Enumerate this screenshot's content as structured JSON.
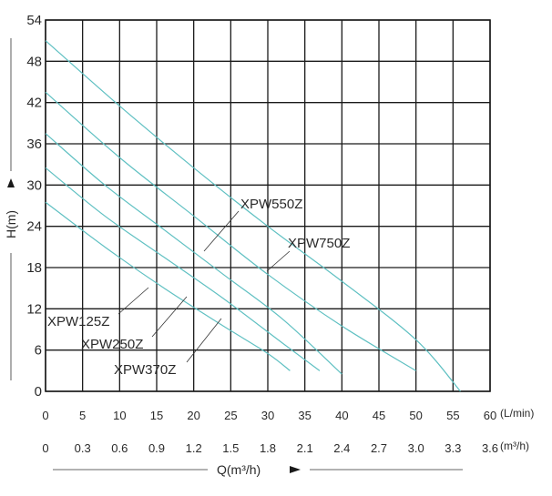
{
  "chart_data": {
    "type": "line",
    "title": "",
    "ylabel": "H(m)",
    "xlabel": "Q(m³/h)",
    "x_unit_top": "(L/min)",
    "x_unit_bottom": "(m³/h)",
    "xlim": [
      0,
      60
    ],
    "ylim": [
      0,
      54
    ],
    "x_ticks_lmin": [
      "0",
      "5",
      "10",
      "15",
      "20",
      "25",
      "30",
      "35",
      "40",
      "45",
      "50",
      "55",
      "60"
    ],
    "x_ticks_m3h": [
      "0",
      "0.3",
      "0.6",
      "0.9",
      "1.2",
      "1.5",
      "1.8",
      "2.1",
      "2.4",
      "2.7",
      "3.0",
      "3.3",
      "3.6"
    ],
    "y_ticks": [
      "0",
      "6",
      "12",
      "18",
      "24",
      "30",
      "36",
      "42",
      "48",
      "54"
    ],
    "grid": true,
    "line_color": "#5fc0c2",
    "series": [
      {
        "name": "XPW125Z",
        "points": [
          [
            0,
            27.5
          ],
          [
            8,
            21
          ],
          [
            16,
            15
          ],
          [
            24,
            9.5
          ],
          [
            30,
            5.5
          ],
          [
            33,
            3
          ]
        ]
      },
      {
        "name": "XPW250Z",
        "points": [
          [
            0,
            32.5
          ],
          [
            8,
            25.5
          ],
          [
            16,
            19.5
          ],
          [
            24,
            13.5
          ],
          [
            32,
            7
          ],
          [
            37,
            3
          ]
        ]
      },
      {
        "name": "XPW370Z",
        "points": [
          [
            0,
            37.5
          ],
          [
            8,
            30
          ],
          [
            16,
            23.5
          ],
          [
            24,
            17
          ],
          [
            32,
            10.5
          ],
          [
            40,
            2.5
          ]
        ]
      },
      {
        "name": "XPW550Z",
        "points": [
          [
            0,
            43.5
          ],
          [
            10,
            34
          ],
          [
            20,
            25.5
          ],
          [
            30,
            17
          ],
          [
            40,
            9.5
          ],
          [
            50,
            3
          ]
        ]
      },
      {
        "name": "XPW750Z",
        "points": [
          [
            0,
            51
          ],
          [
            10,
            41.5
          ],
          [
            20,
            32.5
          ],
          [
            30,
            24
          ],
          [
            40,
            16
          ],
          [
            50,
            7.5
          ],
          [
            56,
            0
          ]
        ]
      }
    ]
  }
}
